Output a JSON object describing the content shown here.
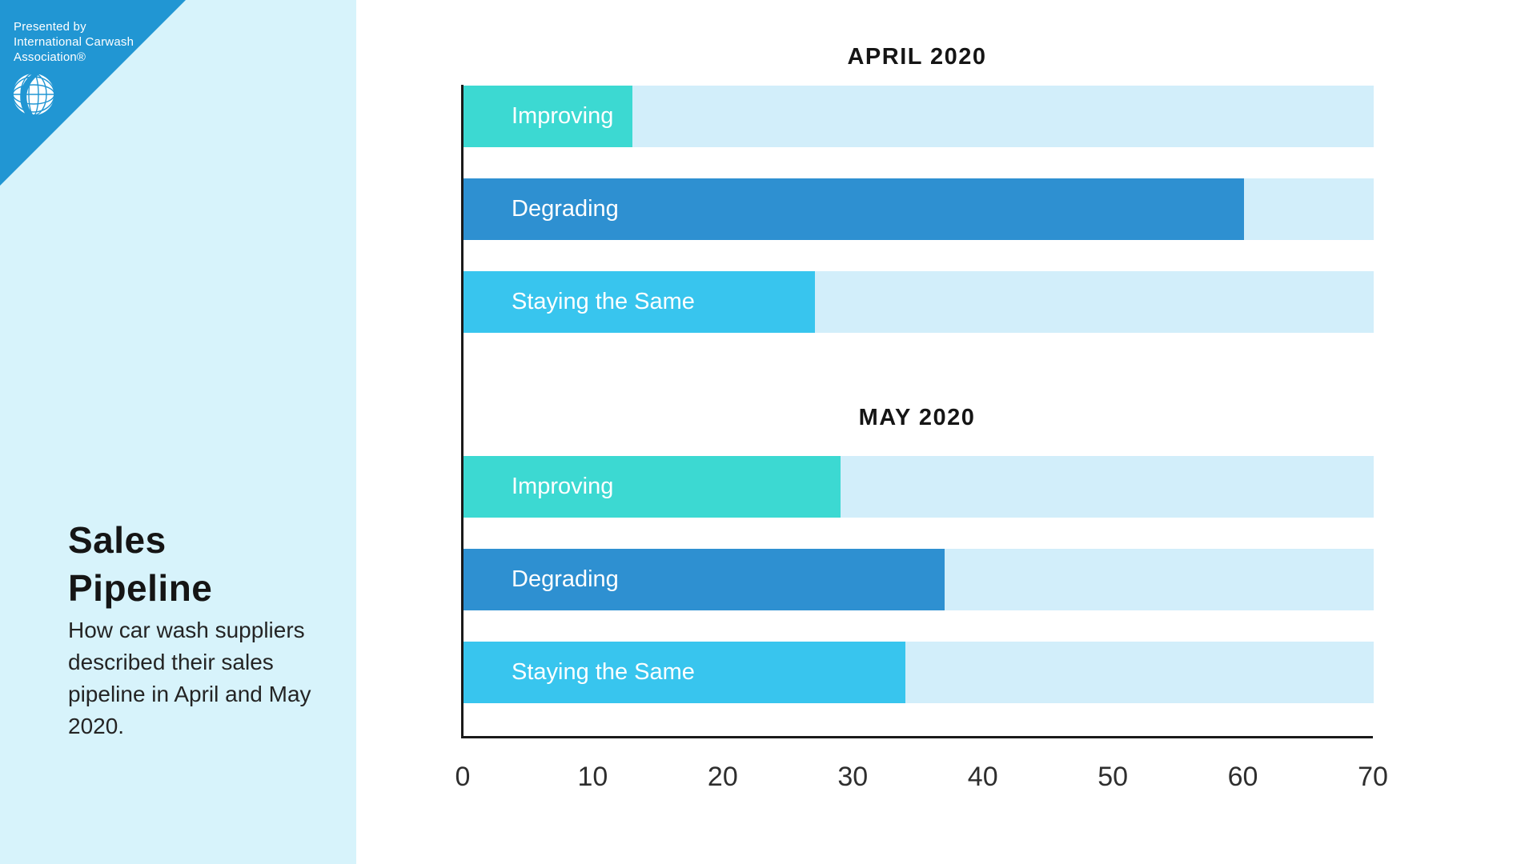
{
  "branding": {
    "presented_by_lines": [
      "Presented by",
      "International Carwash",
      "Association®"
    ],
    "logo_icon": "globe-swoosh-icon"
  },
  "sidebar": {
    "title_lines": [
      "Sales",
      "Pipeline"
    ],
    "description": "How car wash suppliers described their sales pipeline in April and May 2020."
  },
  "colors": {
    "triangle_blue": "#2196d3",
    "sidebar_bg": "#d7f3fb",
    "track": "#d2eefa",
    "axis": "#1a1a1a",
    "text_dark": "#151515",
    "tick_text": "#2e2e2e",
    "bar_label_text": "#ffffff"
  },
  "chart_data": [
    {
      "type": "bar",
      "orientation": "horizontal",
      "title": "APRIL 2020",
      "categories": [
        "Improving",
        "Degrading",
        "Staying the Same"
      ],
      "values": [
        13,
        60,
        27
      ],
      "colors": [
        "#3cd9d2",
        "#2e90d1",
        "#38c5ee"
      ],
      "xlim": [
        0,
        70
      ],
      "grid": false,
      "legend": false
    },
    {
      "type": "bar",
      "orientation": "horizontal",
      "title": "MAY 2020",
      "categories": [
        "Improving",
        "Degrading",
        "Staying the Same"
      ],
      "values": [
        29,
        37,
        34
      ],
      "colors": [
        "#3cd9d2",
        "#2e90d1",
        "#38c5ee"
      ],
      "xlim": [
        0,
        70
      ],
      "grid": false,
      "legend": false
    }
  ],
  "x_axis": {
    "ticks": [
      0,
      10,
      20,
      30,
      40,
      50,
      60,
      70
    ],
    "max": 70
  }
}
